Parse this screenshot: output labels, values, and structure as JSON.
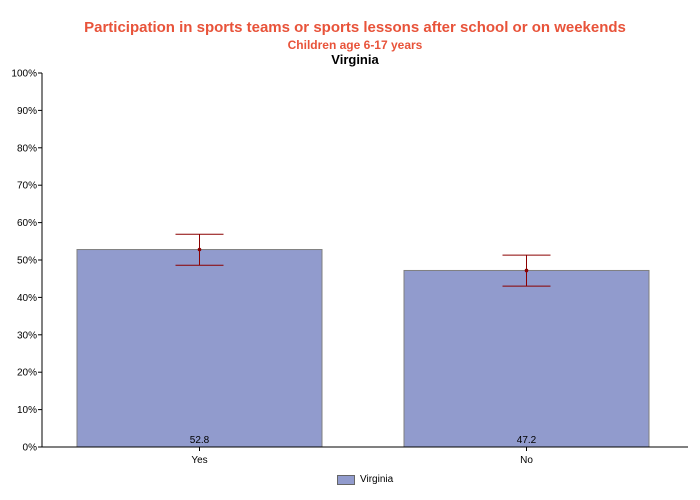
{
  "chart_data": {
    "type": "bar",
    "title": "Participation in sports teams or sports lessons after school or on weekends",
    "subtitle": "Children age 6-17 years",
    "region_title": "Virginia",
    "categories": [
      "Yes",
      "No"
    ],
    "series": [
      {
        "name": "Virginia",
        "values": [
          52.8,
          47.2
        ],
        "ci_lower": [
          48.6,
          43.0
        ],
        "ci_upper": [
          56.9,
          51.3
        ],
        "color": "#919bcd"
      }
    ],
    "value_labels": [
      "52.8",
      "47.2"
    ],
    "xlabel": "",
    "ylabel": "",
    "ylim": [
      0,
      100
    ],
    "yticks": [
      "0%",
      "10%",
      "20%",
      "30%",
      "40%",
      "50%",
      "60%",
      "70%",
      "80%",
      "90%",
      "100%"
    ],
    "grid": false,
    "legend_position": "bottom",
    "colors": {
      "title": "#e8533a",
      "bar": "#919bcd",
      "error_bar": "#8b0000"
    }
  },
  "legend": {
    "label": "Virginia"
  }
}
